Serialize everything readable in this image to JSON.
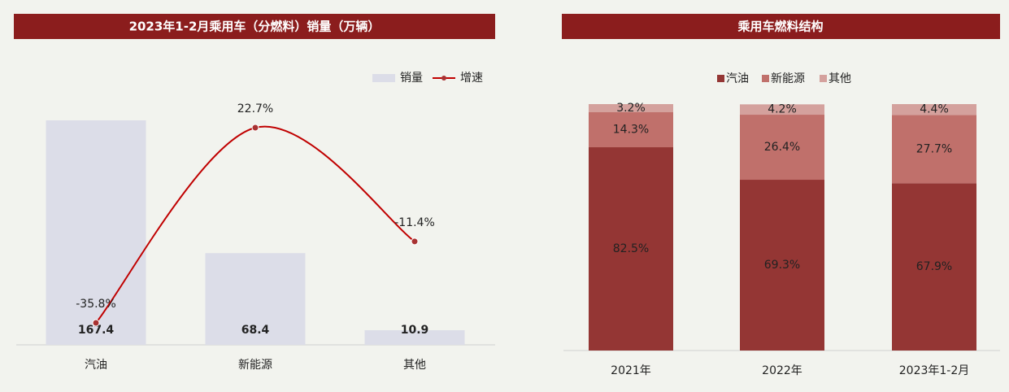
{
  "chart_data": [
    {
      "type": "bar",
      "title": "2023年1-2月乘用车（分燃料）销量（万辆）",
      "categories": [
        "汽油",
        "新能源",
        "其他"
      ],
      "series": [
        {
          "name": "销量",
          "type": "bar",
          "color": "#dcdde8",
          "values": [
            167.4,
            68.4,
            10.9
          ]
        },
        {
          "name": "增速",
          "type": "line",
          "axis": "y2",
          "color": "#c00000",
          "values": [
            -35.8,
            22.7,
            -11.4
          ],
          "value_labels": [
            "-35.8%",
            "22.7%",
            "-11.4%"
          ]
        }
      ],
      "legend": "top-right"
    },
    {
      "type": "stacked-bar",
      "title": "乘用车燃料结构",
      "categories": [
        "2021年",
        "2022年",
        "2023年1-2月"
      ],
      "series": [
        {
          "name": "汽油",
          "color": "#943634",
          "values": [
            82.5,
            69.3,
            67.9
          ],
          "value_labels": [
            "82.5%",
            "69.3%",
            "67.9%"
          ]
        },
        {
          "name": "新能源",
          "color": "#c0706b",
          "values": [
            14.3,
            26.4,
            27.7
          ],
          "value_labels": [
            "14.3%",
            "26.4%",
            "27.7%"
          ]
        },
        {
          "name": "其他",
          "color": "#d4a19d",
          "values": [
            3.2,
            4.2,
            4.4
          ],
          "value_labels": [
            "3.2%",
            "4.2%",
            "4.4%"
          ]
        }
      ],
      "legend": "top"
    }
  ]
}
